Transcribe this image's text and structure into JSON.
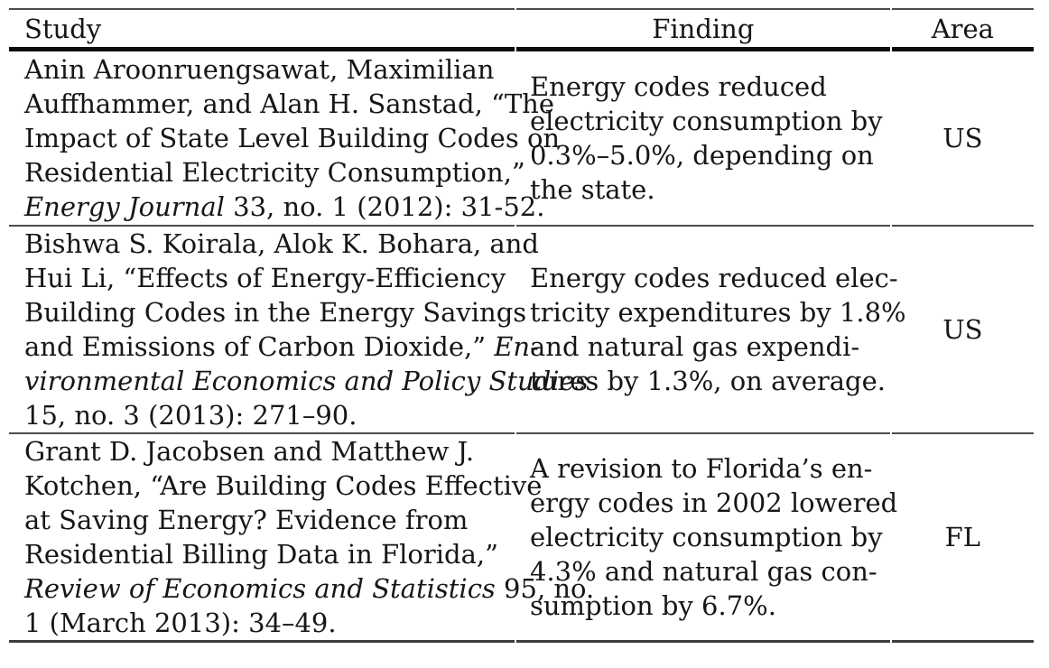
{
  "colors": {
    "background": "#ffffff",
    "text": "#161616",
    "rule_gray": "#4c4c4c",
    "rule_black": "#0c0c0c",
    "rule_bottom": "#3d3d3d"
  },
  "table": {
    "columns": [
      {
        "label": "Study"
      },
      {
        "label": "Finding"
      },
      {
        "label": "Area"
      }
    ],
    "rows": [
      {
        "area": "US",
        "study_lines": [
          [
            {
              "t": "Anin Aroonruengsawat, Maximilian"
            }
          ],
          [
            {
              "t": "Auffhammer, and Alan H. Sanstad, “The"
            }
          ],
          [
            {
              "t": "Impact of State Level Building Codes on"
            }
          ],
          [
            {
              "t": "Residential Electricity Consumption,”"
            }
          ],
          [
            {
              "t": "Energy Journal",
              "i": true
            },
            {
              "t": " 33, no. 1 (2012): 31-52."
            }
          ]
        ],
        "finding_lines": [
          [
            {
              "t": "Energy codes reduced"
            }
          ],
          [
            {
              "t": "electricity consumption by"
            }
          ],
          [
            {
              "t": "0.3%–5.0%, depending on"
            }
          ],
          [
            {
              "t": "the state."
            }
          ]
        ]
      },
      {
        "area": "US",
        "study_lines": [
          [
            {
              "t": "Bishwa S. Koirala, Alok K. Bohara, and"
            }
          ],
          [
            {
              "t": "Hui Li, “Effects of Energy-Efficiency"
            }
          ],
          [
            {
              "t": "Building Codes in the Energy Savings"
            }
          ],
          [
            {
              "t": "and Emissions of Carbon Dioxide,” "
            },
            {
              "t": "En-",
              "i": true
            }
          ],
          [
            {
              "t": "vironmental Economics and Policy Studies",
              "i": true
            }
          ],
          [
            {
              "t": "15, no. 3 (2013): 271–90."
            }
          ]
        ],
        "finding_lines": [
          [
            {
              "t": "Energy codes reduced elec-"
            }
          ],
          [
            {
              "t": "tricity expenditures by 1.8%"
            }
          ],
          [
            {
              "t": "and natural gas expendi-"
            }
          ],
          [
            {
              "t": "tures by 1.3%, on average."
            }
          ]
        ]
      },
      {
        "area": "FL",
        "study_lines": [
          [
            {
              "t": "Grant D. Jacobsen and Matthew J."
            }
          ],
          [
            {
              "t": "Kotchen, “Are Building Codes Effective"
            }
          ],
          [
            {
              "t": "at Saving Energy? Evidence from"
            }
          ],
          [
            {
              "t": "Residential Billing Data in Florida,”"
            }
          ],
          [
            {
              "t": "Review of Economics and Statistics",
              "i": true
            },
            {
              "t": " 95, no."
            }
          ],
          [
            {
              "t": "1 (March 2013): 34–49."
            }
          ]
        ],
        "finding_lines": [
          [
            {
              "t": "A revision to Florida’s en-"
            }
          ],
          [
            {
              "t": "ergy codes in 2002 lowered"
            }
          ],
          [
            {
              "t": "electricity consumption by"
            }
          ],
          [
            {
              "t": "4.3% and natural gas con-"
            }
          ],
          [
            {
              "t": "sumption by 6.7%."
            }
          ]
        ]
      }
    ]
  }
}
